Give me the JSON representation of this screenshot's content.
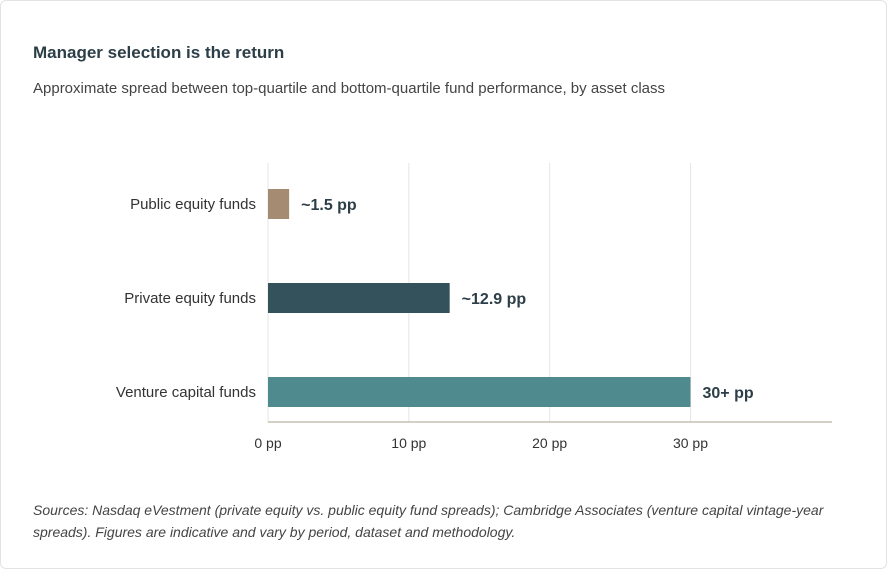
{
  "title": "Manager selection is the return",
  "subtitle": "Approximate spread between top-quartile and bottom-quartile fund performance, by asset class",
  "footnote": "Sources: Nasdaq eVestment (private equity vs. public equity fund spreads); Cambridge Associates (venture capital vintage-year spreads). Figures are indicative and vary by period, dataset and methodology.",
  "chart_data": {
    "type": "bar",
    "orientation": "horizontal",
    "categories": [
      "Public equity funds",
      "Private equity funds",
      "Venture capital funds"
    ],
    "values": [
      1.5,
      12.9,
      30
    ],
    "value_labels": [
      "~1.5 pp",
      "~12.9 pp",
      "30+ pp"
    ],
    "colors": [
      "#a68b73",
      "#33525c",
      "#4f8a8f"
    ],
    "x_ticks": [
      0,
      10,
      20,
      30
    ],
    "x_tick_labels": [
      "0 pp",
      "10 pp",
      "20 pp",
      "30 pp"
    ],
    "xlim": [
      0,
      40
    ],
    "grid": true,
    "legend": "none",
    "xlabel": "",
    "ylabel": ""
  }
}
